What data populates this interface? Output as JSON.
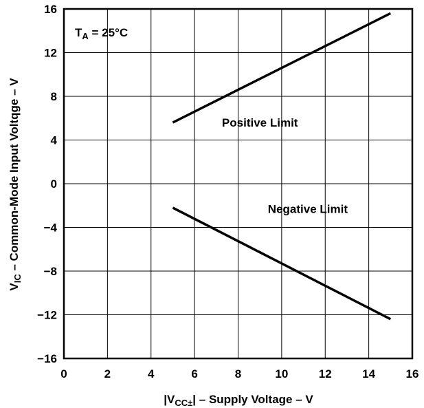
{
  "chart_data": {
    "type": "line",
    "xlim": [
      0,
      16
    ],
    "ylim": [
      -16,
      16
    ],
    "x_ticks": [
      "0",
      "2",
      "4",
      "6",
      "8",
      "10",
      "12",
      "14",
      "16"
    ],
    "y_ticks": [
      "16",
      "12",
      "8",
      "4",
      "0",
      "−4",
      "−8",
      "−12",
      "−16"
    ],
    "grid": true,
    "xlabel": {
      "prefix": "|V",
      "sub": "CC±",
      "suffix": "| – Supply Voltage – V"
    },
    "ylabel": {
      "prefix": "V",
      "sub": "IC",
      "suffix": " – Common-Mode Input Voltqge – V"
    },
    "condition": {
      "prefix": "T",
      "sub": "A",
      "suffix": " = 25°C"
    },
    "series": [
      {
        "name": "Positive Limit",
        "points": [
          [
            5,
            5.6
          ],
          [
            15,
            15.6
          ]
        ]
      },
      {
        "name": "Negative Limit",
        "points": [
          [
            5,
            -2.2
          ],
          [
            15,
            -12.4
          ]
        ]
      }
    ],
    "series_label_at": [
      [
        9,
        5.6
      ],
      [
        11.2,
        -2.3
      ]
    ]
  }
}
